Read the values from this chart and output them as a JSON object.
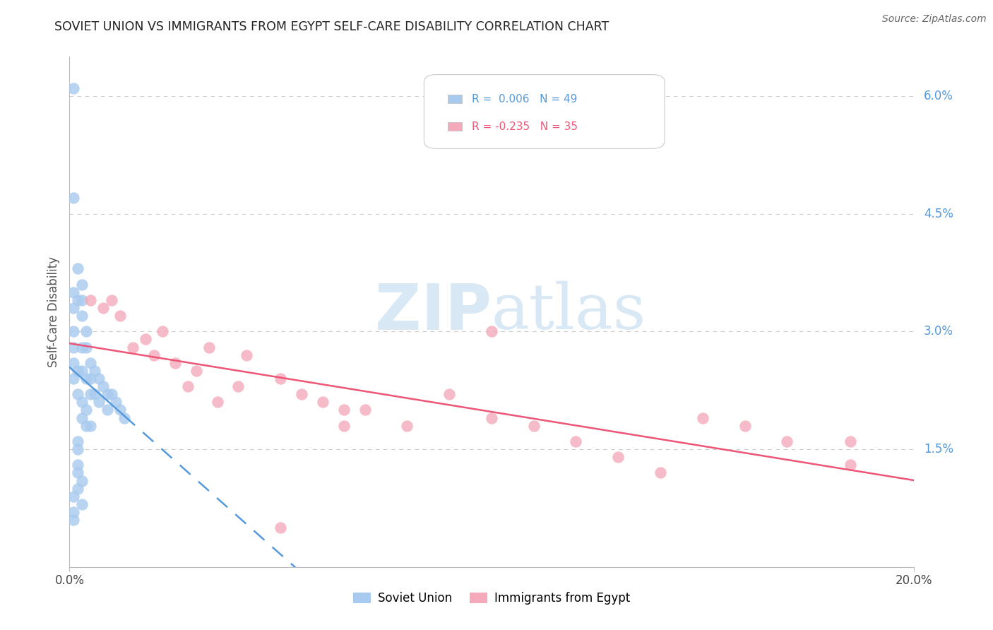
{
  "title": "SOVIET UNION VS IMMIGRANTS FROM EGYPT SELF-CARE DISABILITY CORRELATION CHART",
  "source": "Source: ZipAtlas.com",
  "ylabel": "Self-Care Disability",
  "xlim": [
    0.0,
    0.2
  ],
  "ylim": [
    0.0,
    0.065
  ],
  "right_ytick_vals": [
    0.015,
    0.03,
    0.045,
    0.06
  ],
  "right_ytick_labels": [
    "1.5%",
    "3.0%",
    "4.5%",
    "6.0%"
  ],
  "blue_scatter_color": "#A8CAEE",
  "pink_scatter_color": "#F4AABB",
  "blue_line_color": "#5599DD",
  "pink_line_color": "#EE5577",
  "legend_blue_text_color": "#5599DD",
  "legend_pink_text_color": "#EE5577",
  "right_tick_color": "#5599DD",
  "grid_color": "#CCCCCC",
  "axis_color": "#BBBBBB",
  "watermark_color": "#D8E8F4",
  "title_color": "#222222",
  "source_color": "#666666",
  "legend_r1": "R =  0.006   N = 49",
  "legend_r2": "R = -0.235   N = 35",
  "legend_label_blue": "Soviet Union",
  "legend_label_pink": "Immigrants from Egypt",
  "soviet_x": [
    0.001,
    0.001,
    0.001,
    0.001,
    0.001,
    0.001,
    0.001,
    0.001,
    0.002,
    0.002,
    0.002,
    0.002,
    0.002,
    0.002,
    0.003,
    0.003,
    0.003,
    0.003,
    0.003,
    0.003,
    0.003,
    0.004,
    0.004,
    0.004,
    0.004,
    0.004,
    0.005,
    0.005,
    0.005,
    0.005,
    0.006,
    0.006,
    0.007,
    0.007,
    0.008,
    0.009,
    0.009,
    0.01,
    0.011,
    0.012,
    0.013,
    0.001,
    0.001,
    0.002,
    0.003,
    0.001,
    0.002,
    0.002,
    0.003
  ],
  "soviet_y": [
    0.061,
    0.047,
    0.035,
    0.033,
    0.03,
    0.028,
    0.026,
    0.024,
    0.038,
    0.034,
    0.025,
    0.022,
    0.016,
    0.013,
    0.036,
    0.034,
    0.032,
    0.028,
    0.025,
    0.021,
    0.019,
    0.03,
    0.028,
    0.024,
    0.02,
    0.018,
    0.026,
    0.024,
    0.022,
    0.018,
    0.025,
    0.022,
    0.024,
    0.021,
    0.023,
    0.022,
    0.02,
    0.022,
    0.021,
    0.02,
    0.019,
    0.009,
    0.007,
    0.012,
    0.011,
    0.006,
    0.015,
    0.01,
    0.008
  ],
  "egypt_x": [
    0.005,
    0.008,
    0.01,
    0.012,
    0.015,
    0.018,
    0.02,
    0.022,
    0.025,
    0.028,
    0.03,
    0.033,
    0.035,
    0.04,
    0.042,
    0.05,
    0.055,
    0.06,
    0.065,
    0.07,
    0.08,
    0.09,
    0.1,
    0.11,
    0.12,
    0.13,
    0.14,
    0.15,
    0.16,
    0.17,
    0.185,
    0.05,
    0.065,
    0.1,
    0.185
  ],
  "egypt_y": [
    0.034,
    0.033,
    0.034,
    0.032,
    0.028,
    0.029,
    0.027,
    0.03,
    0.026,
    0.023,
    0.025,
    0.028,
    0.021,
    0.023,
    0.027,
    0.024,
    0.022,
    0.021,
    0.02,
    0.02,
    0.018,
    0.022,
    0.019,
    0.018,
    0.016,
    0.014,
    0.012,
    0.019,
    0.018,
    0.016,
    0.016,
    0.005,
    0.018,
    0.03,
    0.013
  ]
}
